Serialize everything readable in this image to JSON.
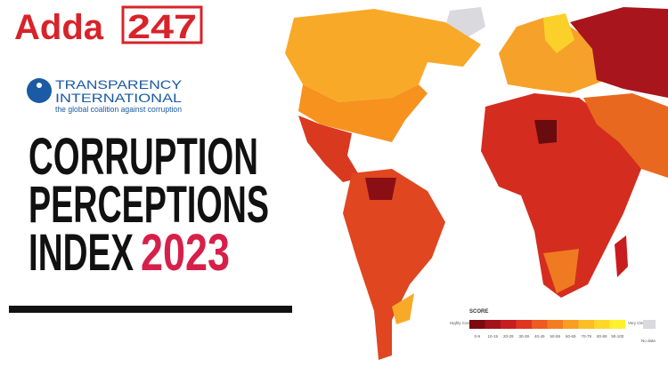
{
  "logo": {
    "brand": "Adda",
    "number": "247"
  },
  "organization": {
    "name_line1": "TRANSPARENCY",
    "name_line2": "INTERNATIONAL",
    "tagline": "the global coalition against corruption"
  },
  "headline": {
    "lines": [
      "CORRUPTION",
      "PERCEPTIONS",
      "INDEX"
    ],
    "year": "2023"
  },
  "legend": {
    "title": "SCORE",
    "low_label": "Highly Corrupt",
    "high_label": "Very Clean",
    "no_data_label": "No data",
    "bins": [
      {
        "label": "0-9",
        "color": "#7a0b10"
      },
      {
        "label": "10-19",
        "color": "#a3121a"
      },
      {
        "label": "20-29",
        "color": "#c81d1f"
      },
      {
        "label": "30-39",
        "color": "#e0351f"
      },
      {
        "label": "40-49",
        "color": "#ee5a1f"
      },
      {
        "label": "50-59",
        "color": "#f47c20"
      },
      {
        "label": "60-69",
        "color": "#f89f22"
      },
      {
        "label": "70-79",
        "color": "#fbbe25"
      },
      {
        "label": "80-89",
        "color": "#fdd72a"
      },
      {
        "label": "90-100",
        "color": "#fef02e"
      }
    ],
    "no_data_color": "#d9d9de"
  }
}
